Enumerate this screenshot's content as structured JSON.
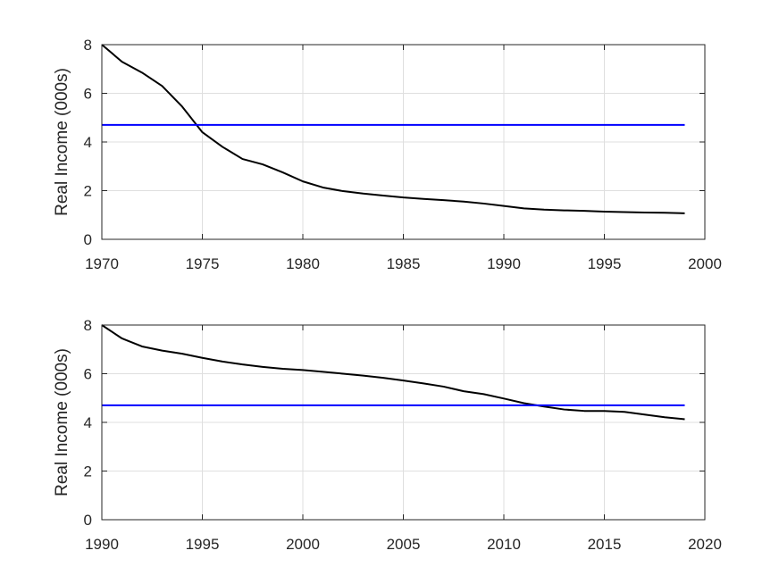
{
  "chart_data": [
    {
      "type": "line",
      "ylabel": "Real Income (000s)",
      "xlim": [
        1970,
        2000
      ],
      "ylim": [
        0,
        8
      ],
      "xticks": [
        "1970",
        "1975",
        "1980",
        "1985",
        "1990",
        "1995",
        "2000"
      ],
      "yticks": [
        "0",
        "2",
        "4",
        "6",
        "8"
      ],
      "grid": true,
      "series": [
        {
          "color": "#000000",
          "x": [
            1970,
            1971,
            1972,
            1973,
            1974,
            1975,
            1976,
            1977,
            1978,
            1979,
            1980,
            1981,
            1982,
            1983,
            1984,
            1985,
            1986,
            1987,
            1988,
            1989,
            1990,
            1991,
            1992,
            1993,
            1994,
            1995,
            1996,
            1997,
            1998,
            1999
          ],
          "y": [
            8.0,
            7.3,
            6.85,
            6.3,
            5.45,
            4.4,
            3.8,
            3.3,
            3.08,
            2.75,
            2.38,
            2.13,
            1.98,
            1.88,
            1.8,
            1.72,
            1.66,
            1.61,
            1.55,
            1.47,
            1.37,
            1.27,
            1.22,
            1.19,
            1.17,
            1.14,
            1.12,
            1.1,
            1.09,
            1.07
          ]
        },
        {
          "color": "#0000ff",
          "x": [
            1970,
            1999
          ],
          "y": [
            4.7,
            4.7
          ]
        }
      ]
    },
    {
      "type": "line",
      "ylabel": "Real Income (000s)",
      "xlim": [
        1990,
        2020
      ],
      "ylim": [
        0,
        8
      ],
      "xticks": [
        "1990",
        "1995",
        "2000",
        "2005",
        "2010",
        "2015",
        "2020"
      ],
      "yticks": [
        "0",
        "2",
        "4",
        "6",
        "8"
      ],
      "grid": true,
      "series": [
        {
          "color": "#000000",
          "x": [
            1990,
            1991,
            1992,
            1993,
            1994,
            1995,
            1996,
            1997,
            1998,
            1999,
            2000,
            2001,
            2002,
            2003,
            2004,
            2005,
            2006,
            2007,
            2008,
            2009,
            2010,
            2011,
            2012,
            2013,
            2014,
            2015,
            2016,
            2017,
            2018,
            2019
          ],
          "y": [
            8.0,
            7.45,
            7.12,
            6.95,
            6.82,
            6.65,
            6.5,
            6.38,
            6.28,
            6.2,
            6.15,
            6.08,
            6.0,
            5.92,
            5.83,
            5.72,
            5.6,
            5.47,
            5.28,
            5.16,
            4.98,
            4.79,
            4.65,
            4.53,
            4.47,
            4.47,
            4.43,
            4.32,
            4.21,
            4.13
          ]
        },
        {
          "color": "#0000ff",
          "x": [
            1990,
            2019
          ],
          "y": [
            4.7,
            4.7
          ]
        }
      ]
    }
  ]
}
